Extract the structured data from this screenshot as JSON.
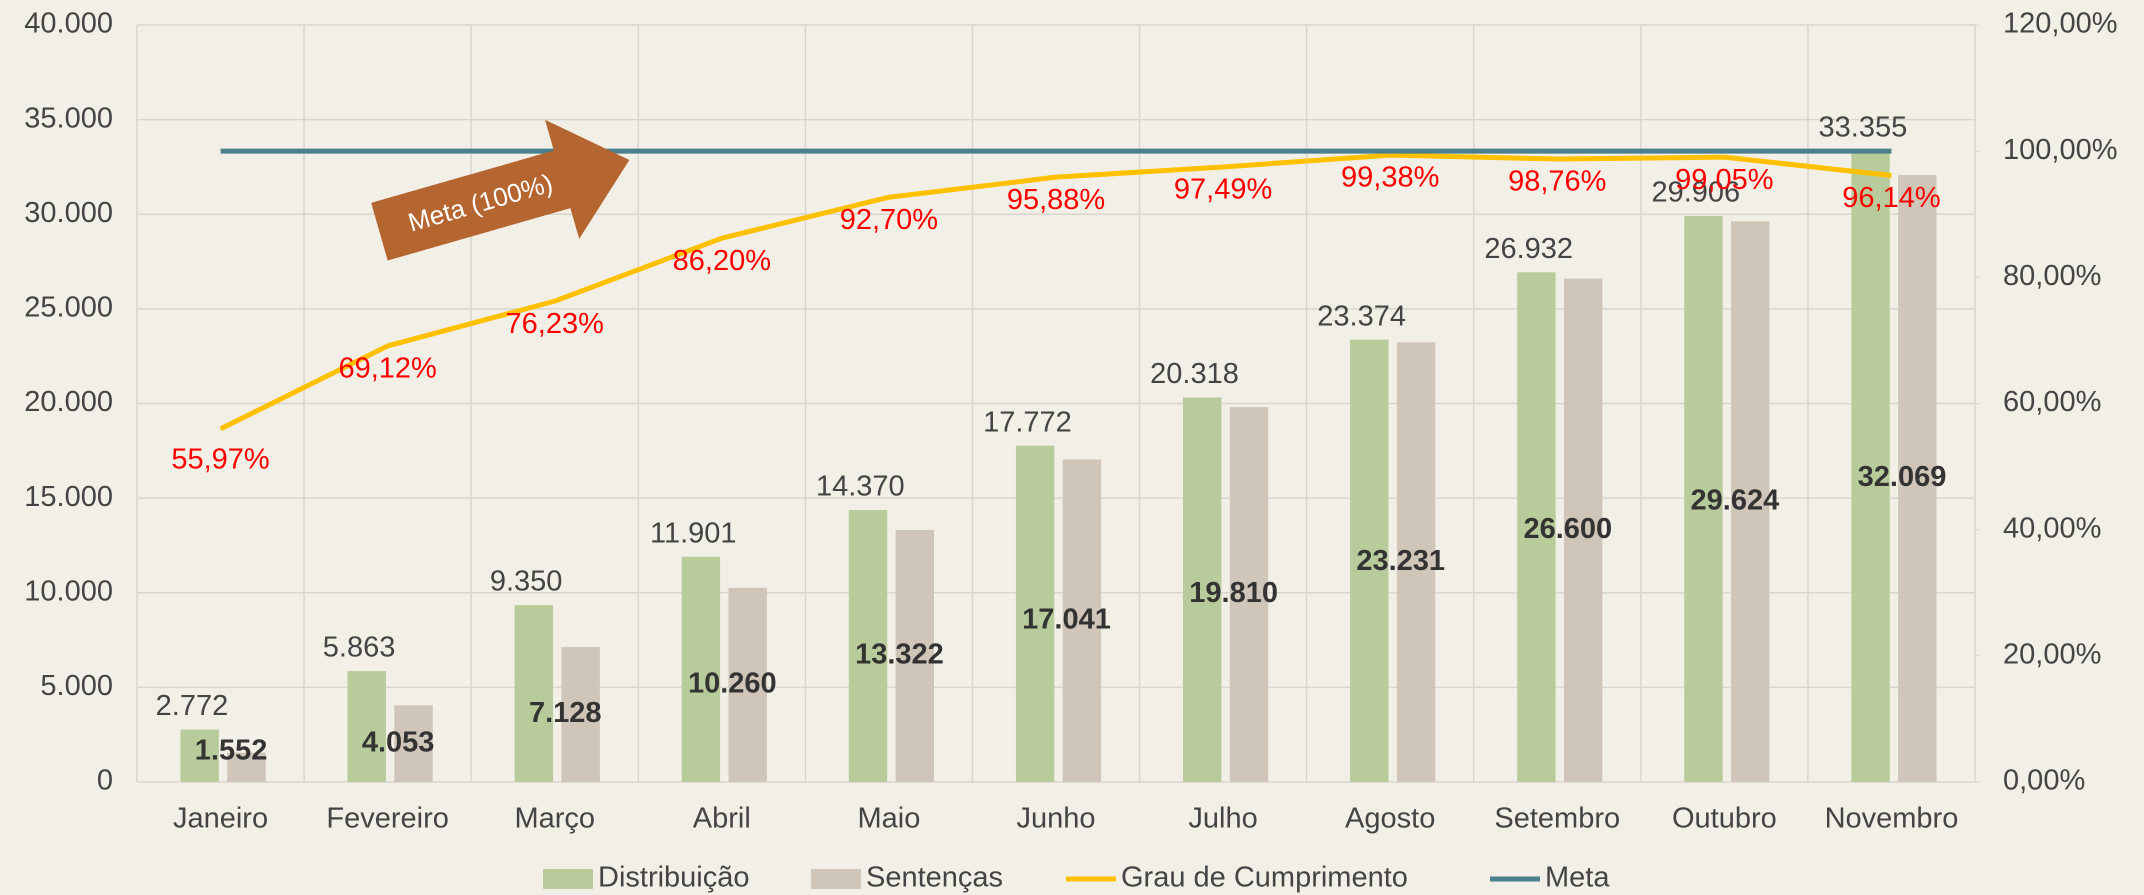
{
  "chart_data": {
    "type": "bar",
    "categories": [
      "Janeiro",
      "Fevereiro",
      "Março",
      "Abril",
      "Maio",
      "Junho",
      "Julho",
      "Agosto",
      "Setembro",
      "Outubro",
      "Novembro"
    ],
    "series": [
      {
        "name": "Distribuição",
        "type": "bar",
        "color": "#b8cc9b",
        "values": [
          2772,
          5863,
          9350,
          11901,
          14370,
          17772,
          20318,
          23374,
          26932,
          29906,
          33355
        ],
        "value_labels": [
          "2.772",
          "5.863",
          "9.350",
          "11.901",
          "14.370",
          "17.772",
          "20.318",
          "23.374",
          "26.932",
          "29.906",
          "33.355"
        ]
      },
      {
        "name": "Sentenças",
        "type": "bar",
        "color": "#cfc5b8",
        "values": [
          1552,
          4053,
          7128,
          10260,
          13322,
          17041,
          19810,
          23231,
          26600,
          29624,
          32069
        ],
        "value_labels": [
          "1.552",
          "4.053",
          "7.128",
          "10.260",
          "13.322",
          "17.041",
          "19.810",
          "23.231",
          "26.600",
          "29.624",
          "32.069"
        ]
      },
      {
        "name": "Grau de Cumprimento",
        "type": "line",
        "axis": "y2",
        "color": "#ffc000",
        "values": [
          55.97,
          69.12,
          76.23,
          86.2,
          92.7,
          95.88,
          97.49,
          99.38,
          98.76,
          99.05,
          96.14
        ],
        "value_labels": [
          "55,97%",
          "69,12%",
          "76,23%",
          "86,20%",
          "92,70%",
          "95,88%",
          "97,49%",
          "99,38%",
          "98,76%",
          "99,05%",
          "96,14%"
        ]
      },
      {
        "name": "Meta",
        "type": "line",
        "axis": "y2",
        "color": "#4a7f8c",
        "values": [
          100,
          100,
          100,
          100,
          100,
          100,
          100,
          100,
          100,
          100,
          100
        ]
      }
    ],
    "ylim": [
      0,
      40000
    ],
    "yticks": [
      0,
      {
        "value": 5000,
        "label": "5.000"
      },
      {
        "value": 10000,
        "label": "10.000"
      },
      {
        "value": 15000,
        "label": "15.000"
      },
      {
        "value": 20000,
        "label": "20.000"
      },
      {
        "value": 25000,
        "label": "25.000"
      },
      {
        "value": 30000,
        "label": "30.000"
      },
      {
        "value": 35000,
        "label": "35.000"
      },
      {
        "value": 40000,
        "label": "40.000"
      }
    ],
    "y2lim": [
      0,
      120
    ],
    "y2ticks": [
      {
        "value": 0,
        "label": "0,00%"
      },
      {
        "value": 20,
        "label": "20,00%"
      },
      {
        "value": 40,
        "label": "40,00%"
      },
      {
        "value": 60,
        "label": "60,00%"
      },
      {
        "value": 80,
        "label": "80,00%"
      },
      {
        "value": 100,
        "label": "100,00%"
      },
      {
        "value": 120,
        "label": "120,00%"
      }
    ],
    "grid": true,
    "legend": "bottom",
    "annotation": "Meta (100%)"
  }
}
